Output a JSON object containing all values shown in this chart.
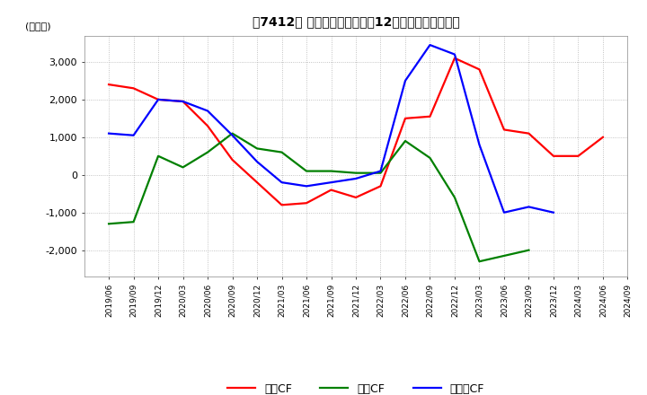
{
  "title": "【7412】 キャッシュフローの12か月移動合計の推移",
  "ylabel": "(百万円)",
  "ylim": [
    -2700,
    3700
  ],
  "yticks": [
    -2000,
    -1000,
    0,
    1000,
    2000,
    3000
  ],
  "dates": [
    "2019/06",
    "2019/09",
    "2019/12",
    "2020/03",
    "2020/06",
    "2020/09",
    "2020/12",
    "2021/03",
    "2021/06",
    "2021/09",
    "2021/12",
    "2022/03",
    "2022/06",
    "2022/09",
    "2022/12",
    "2023/03",
    "2023/06",
    "2023/09",
    "2023/12",
    "2024/03",
    "2024/06",
    "2024/09"
  ],
  "operating_cf": [
    2400,
    2300,
    2000,
    1950,
    1300,
    400,
    -200,
    -800,
    -750,
    -400,
    -600,
    -300,
    1500,
    1550,
    3100,
    2800,
    1200,
    1100,
    500,
    500,
    1000,
    null
  ],
  "investing_cf": [
    -1300,
    -1250,
    500,
    200,
    600,
    1100,
    700,
    600,
    100,
    100,
    50,
    50,
    900,
    450,
    -600,
    -2300,
    -2150,
    -2000,
    null,
    null,
    null,
    null
  ],
  "free_cf": [
    1100,
    1050,
    2000,
    1950,
    1700,
    1050,
    350,
    -200,
    -300,
    -200,
    -100,
    100,
    2500,
    3450,
    3200,
    800,
    -1000,
    -850,
    -1000,
    null,
    null,
    null
  ],
  "operating_color": "#ff0000",
  "investing_color": "#008000",
  "free_color": "#0000ff",
  "background_color": "#ffffff",
  "grid_color": "#aaaaaa"
}
